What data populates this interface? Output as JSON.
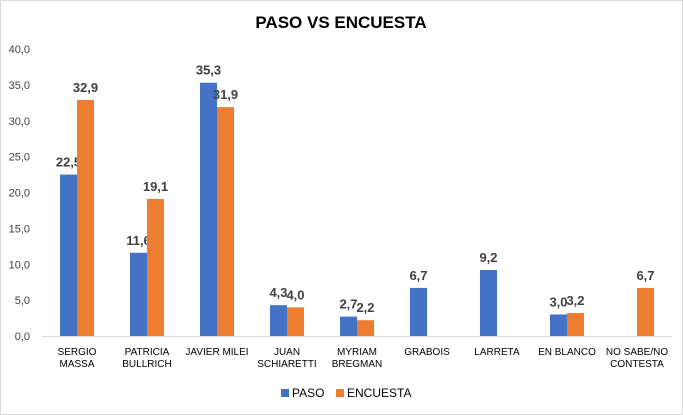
{
  "chart_data": {
    "type": "bar",
    "title": "PASO VS ENCUESTA",
    "categories": [
      [
        "SERGIO",
        "MASSA"
      ],
      [
        "PATRICIA",
        "BULLRICH"
      ],
      [
        "JAVIER MILEI"
      ],
      [
        "JUAN",
        "SCHIARETTI"
      ],
      [
        "MYRIAM",
        "BREGMAN"
      ],
      [
        "GRABOIS"
      ],
      [
        "LARRETA"
      ],
      [
        "EN BLANCO"
      ],
      [
        "NO SABE/NO",
        "CONTESTA"
      ]
    ],
    "series": [
      {
        "name": "PASO",
        "color": "#4472C4",
        "values": [
          22.5,
          11.6,
          35.3,
          4.3,
          2.7,
          6.7,
          9.2,
          3.0,
          null
        ],
        "labels": [
          "22,5",
          "11,6",
          "35,3",
          "4,3",
          "2,7",
          "6,7",
          "9,2",
          "3,0",
          null
        ]
      },
      {
        "name": "ENCUESTA",
        "color": "#ED7D31",
        "values": [
          32.9,
          19.1,
          31.9,
          4.0,
          2.2,
          null,
          null,
          3.2,
          6.7
        ],
        "labels": [
          "32,9",
          "19,1",
          "31,9",
          "4,0",
          "2,2",
          null,
          null,
          "3,2",
          "6,7"
        ]
      }
    ],
    "ylim": [
      0,
      40
    ],
    "yticks": [
      "0,0",
      "5,0",
      "10,0",
      "15,0",
      "20,0",
      "25,0",
      "30,0",
      "35,0",
      "40,0"
    ],
    "grid": false,
    "legend": "bottom"
  }
}
